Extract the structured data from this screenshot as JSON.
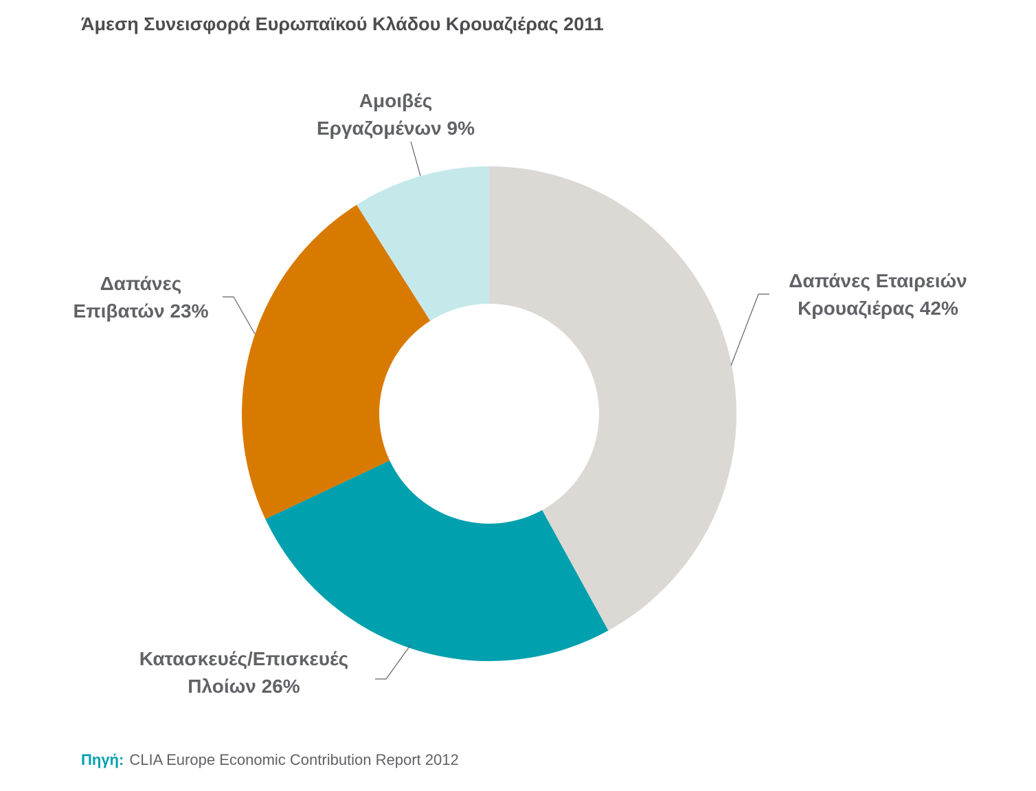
{
  "chart_data": {
    "type": "pie",
    "title": "Άμεση Συνεισφορά Ευρωπαϊκού Κλάδου Κρουαζιέρας 2011",
    "donut": true,
    "slices": [
      {
        "label_lines": [
          "Δαπάνες Εταιρειών",
          "Κρουαζιέρας 42%"
        ],
        "value": 42,
        "color": "#dcd8d4"
      },
      {
        "label_lines": [
          "Κατασκευές/Επισκευές",
          "Πλοίων 26%"
        ],
        "value": 26,
        "color": "#00a0ae"
      },
      {
        "label_lines": [
          "Δαπάνες",
          "Επιβατών 23%"
        ],
        "value": 23,
        "color": "#d97a00"
      },
      {
        "label_lines": [
          "Αμοιβές",
          "Εργαζομένων 9%"
        ],
        "value": 9,
        "color": "#c5e9eb"
      }
    ]
  },
  "source": {
    "label": "Πηγή:",
    "text": "CLIA Europe Economic Contribution Report 2012"
  }
}
